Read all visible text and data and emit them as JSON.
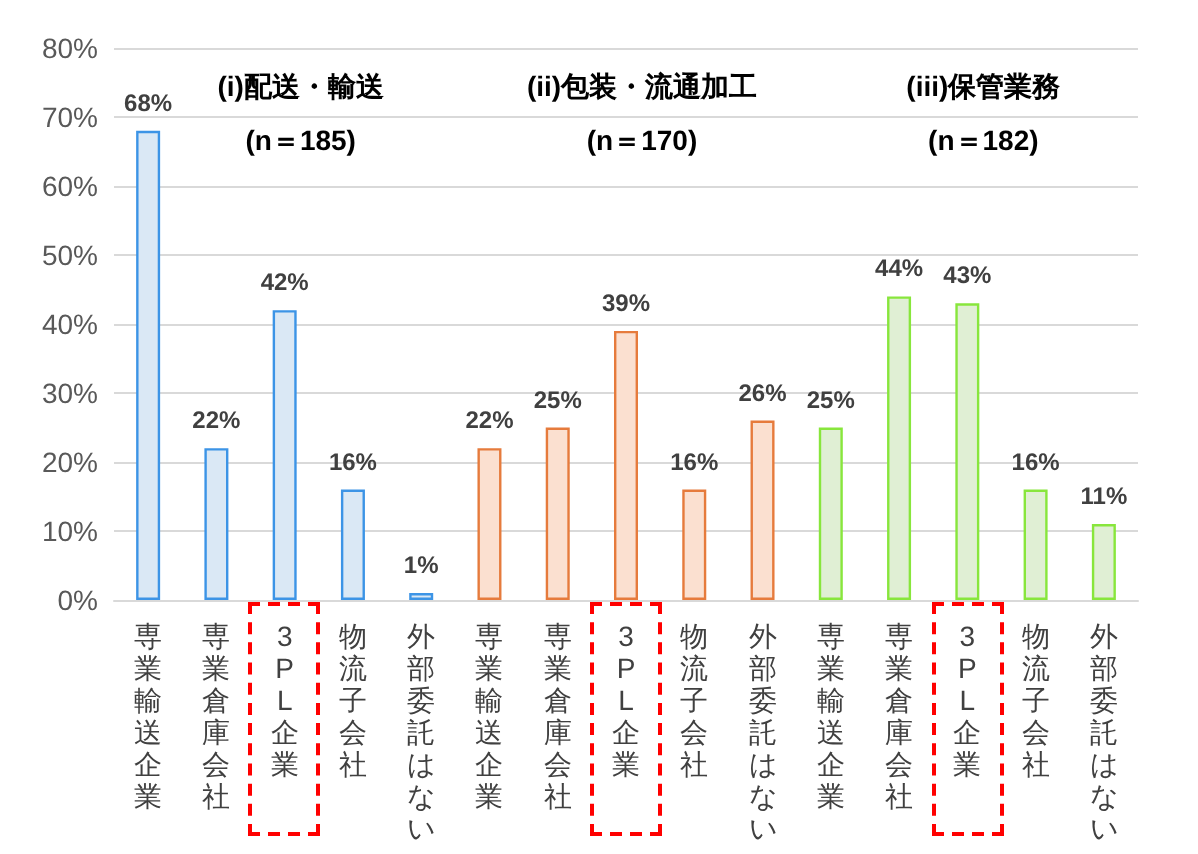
{
  "chart_data": {
    "type": "bar",
    "categories": [
      "専業輸送企業",
      "専業倉庫会社",
      "3PL企業",
      "物流子会社",
      "外部委託はない",
      "専業輸送企業",
      "専業倉庫会社",
      "3PL企業",
      "物流子会社",
      "外部委託はない",
      "専業輸送企業",
      "専業倉庫会社",
      "3PL企業",
      "物流子会社",
      "外部委託はない"
    ],
    "values": [
      68,
      22,
      42,
      16,
      1,
      22,
      25,
      39,
      16,
      26,
      25,
      44,
      43,
      16,
      11
    ],
    "colors": [
      "#dae8f5",
      "#dae8f5",
      "#dae8f5",
      "#dae8f5",
      "#dae8f5",
      "#fbe0d0",
      "#fbe0d0",
      "#fbe0d0",
      "#fbe0d0",
      "#fbe0d0",
      "#e0efd4",
      "#e0efd4",
      "#e0efd4",
      "#e0efd4",
      "#e0efd4"
    ],
    "value_labels": [
      "68%",
      "22%",
      "42%",
      "16%",
      "1%",
      "22%",
      "25%",
      "39%",
      "16%",
      "26%",
      "25%",
      "44%",
      "43%",
      "16%",
      "11%"
    ],
    "ylim": [
      0,
      80
    ],
    "yticks": [
      {
        "value": 0,
        "label": "0%"
      },
      {
        "value": 10,
        "label": "10%"
      },
      {
        "value": 20,
        "label": "20%"
      },
      {
        "value": 30,
        "label": "30%"
      },
      {
        "value": 40,
        "label": "40%"
      },
      {
        "value": 50,
        "label": "50%"
      },
      {
        "value": 60,
        "label": "60%"
      },
      {
        "value": 70,
        "label": "70%"
      },
      {
        "value": 80,
        "label": "80%"
      }
    ],
    "grid": "y",
    "annotations": [
      "(i)配送・輸送",
      "(n＝185)",
      "(ii)包装・流通加工",
      "(n＝170)",
      "(iii)保管業務",
      "(n＝182)"
    ]
  }
}
